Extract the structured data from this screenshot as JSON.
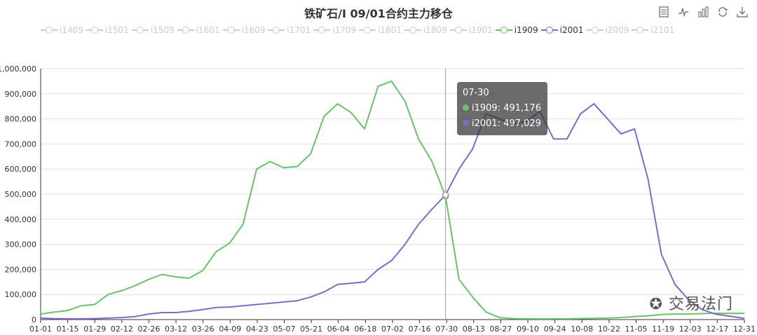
{
  "title": "铁矿石/I 09/01合约主力移仓",
  "toolbox": [
    "data-view-icon",
    "line-chart-icon",
    "bar-chart-icon",
    "restore-icon",
    "save-image-icon"
  ],
  "legend": [
    {
      "name": "i1409",
      "active": false
    },
    {
      "name": "i1501",
      "active": false
    },
    {
      "name": "i1509",
      "active": false
    },
    {
      "name": "i1601",
      "active": false
    },
    {
      "name": "i1609",
      "active": false
    },
    {
      "name": "i1701",
      "active": false
    },
    {
      "name": "i1709",
      "active": false
    },
    {
      "name": "i1801",
      "active": false
    },
    {
      "name": "i1809",
      "active": false
    },
    {
      "name": "i1901",
      "active": false
    },
    {
      "name": "i1909",
      "active": true,
      "color": "#68c36a"
    },
    {
      "name": "i2001",
      "active": true,
      "color": "#7b6cc7"
    },
    {
      "name": "i2009",
      "active": false
    },
    {
      "name": "i2101",
      "active": false
    }
  ],
  "tooltip": {
    "date": "07-30",
    "rows": [
      {
        "label": "i1909: 491,176",
        "color": "#68c36a"
      },
      {
        "label": "i2001: 497,029",
        "color": "#7b6cc7"
      }
    ]
  },
  "watermark": "交易法门",
  "chart_data": {
    "type": "line",
    "x_ticks": [
      "01-01",
      "01-15",
      "01-29",
      "02-12",
      "02-26",
      "03-12",
      "03-26",
      "04-09",
      "04-23",
      "05-07",
      "05-21",
      "06-04",
      "06-18",
      "07-02",
      "07-16",
      "07-30",
      "08-13",
      "08-27",
      "09-10",
      "09-24",
      "10-08",
      "10-22",
      "11-05",
      "11-19",
      "12-03",
      "12-17",
      "12-31"
    ],
    "y_ticks": [
      "0",
      "100,000",
      "200,000",
      "300,000",
      "400,000",
      "500,000",
      "600,000",
      "700,000",
      "800,000",
      "900,000",
      "1,000,000"
    ],
    "ylim": [
      0,
      1000000
    ],
    "highlight_x": 210,
    "series": [
      {
        "name": "i1909",
        "color": "#68c36a",
        "points": [
          [
            0,
            22000
          ],
          [
            7,
            30000
          ],
          [
            14,
            36000
          ],
          [
            21,
            55000
          ],
          [
            28,
            60000
          ],
          [
            35,
            100000
          ],
          [
            42,
            115000
          ],
          [
            49,
            135000
          ],
          [
            56,
            160000
          ],
          [
            63,
            180000
          ],
          [
            70,
            170000
          ],
          [
            77,
            165000
          ],
          [
            84,
            195000
          ],
          [
            91,
            270000
          ],
          [
            98,
            305000
          ],
          [
            105,
            380000
          ],
          [
            112,
            600000
          ],
          [
            119,
            630000
          ],
          [
            126,
            605000
          ],
          [
            133,
            610000
          ],
          [
            140,
            660000
          ],
          [
            147,
            810000
          ],
          [
            154,
            860000
          ],
          [
            161,
            825000
          ],
          [
            168,
            760000
          ],
          [
            175,
            930000
          ],
          [
            182,
            950000
          ],
          [
            189,
            870000
          ],
          [
            196,
            720000
          ],
          [
            203,
            630000
          ],
          [
            210,
            491176
          ],
          [
            217,
            160000
          ],
          [
            224,
            90000
          ],
          [
            231,
            30000
          ],
          [
            238,
            8000
          ],
          [
            245,
            4000
          ],
          [
            252,
            3000
          ],
          [
            259,
            3000
          ],
          [
            266,
            3000
          ],
          [
            273,
            3000
          ],
          [
            280,
            4000
          ],
          [
            287,
            5000
          ],
          [
            294,
            6000
          ],
          [
            301,
            8000
          ],
          [
            308,
            12000
          ],
          [
            315,
            15000
          ],
          [
            322,
            20000
          ],
          [
            329,
            22000
          ],
          [
            336,
            22000
          ],
          [
            344,
            24000
          ],
          [
            350,
            25000
          ],
          [
            365,
            25000
          ]
        ]
      },
      {
        "name": "i2001",
        "color": "#7b6cc7",
        "points": [
          [
            0,
            6000
          ],
          [
            7,
            4000
          ],
          [
            14,
            3000
          ],
          [
            21,
            3000
          ],
          [
            28,
            4000
          ],
          [
            35,
            6000
          ],
          [
            42,
            8000
          ],
          [
            49,
            12000
          ],
          [
            56,
            22000
          ],
          [
            63,
            28000
          ],
          [
            70,
            28000
          ],
          [
            77,
            33000
          ],
          [
            84,
            40000
          ],
          [
            91,
            48000
          ],
          [
            98,
            50000
          ],
          [
            105,
            55000
          ],
          [
            112,
            60000
          ],
          [
            119,
            65000
          ],
          [
            126,
            70000
          ],
          [
            133,
            75000
          ],
          [
            140,
            90000
          ],
          [
            147,
            110000
          ],
          [
            154,
            140000
          ],
          [
            161,
            145000
          ],
          [
            168,
            150000
          ],
          [
            175,
            200000
          ],
          [
            182,
            235000
          ],
          [
            189,
            300000
          ],
          [
            196,
            380000
          ],
          [
            203,
            440000
          ],
          [
            210,
            497029
          ],
          [
            217,
            600000
          ],
          [
            224,
            680000
          ],
          [
            231,
            820000
          ],
          [
            238,
            800000
          ],
          [
            245,
            780000
          ],
          [
            252,
            790000
          ],
          [
            259,
            830000
          ],
          [
            266,
            720000
          ],
          [
            273,
            720000
          ],
          [
            280,
            820000
          ],
          [
            287,
            860000
          ],
          [
            294,
            800000
          ],
          [
            301,
            740000
          ],
          [
            308,
            760000
          ],
          [
            315,
            560000
          ],
          [
            322,
            260000
          ],
          [
            329,
            140000
          ],
          [
            336,
            80000
          ],
          [
            343,
            40000
          ],
          [
            350,
            22000
          ],
          [
            365,
            5000
          ]
        ]
      }
    ]
  }
}
